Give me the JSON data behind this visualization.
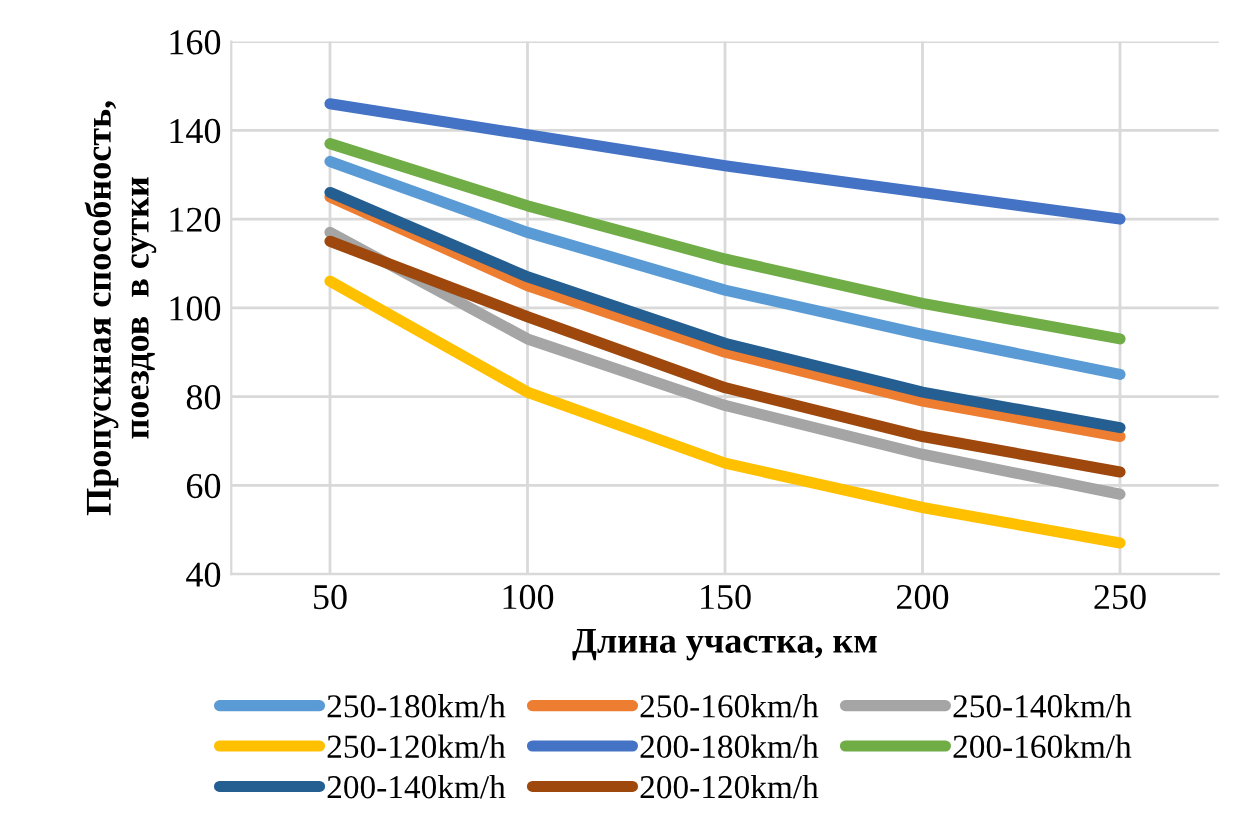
{
  "chart_data": {
    "type": "line",
    "xlabel": "Длина участка, км",
    "ylabel": "Пропускная способность,\nпоездов  в сутки",
    "categories": [
      "50",
      "100",
      "150",
      "200",
      "250"
    ],
    "ylim": [
      40,
      160
    ],
    "yticks": [
      40,
      60,
      80,
      100,
      120,
      140,
      160
    ],
    "grid": true,
    "legend": "bottom",
    "marker": "none",
    "line_style": "solid",
    "series": [
      {
        "name": "250-180km/h",
        "color": "#5b9bd5",
        "values": [
          133,
          117,
          104,
          94,
          85
        ]
      },
      {
        "name": "250-160km/h",
        "color": "#ed7d31",
        "values": [
          125,
          105,
          90,
          79,
          71
        ]
      },
      {
        "name": "250-140km/h",
        "color": "#a5a5a5",
        "values": [
          117,
          93,
          78,
          67,
          58
        ]
      },
      {
        "name": "250-120km/h",
        "color": "#ffc000",
        "values": [
          106,
          81,
          65,
          55,
          47
        ]
      },
      {
        "name": "200-180km/h",
        "color": "#4472c4",
        "values": [
          146,
          139,
          132,
          126,
          120
        ]
      },
      {
        "name": "200-160km/h",
        "color": "#70ad47",
        "values": [
          137,
          123,
          111,
          101,
          93
        ]
      },
      {
        "name": "200-140km/h",
        "color": "#255e91",
        "values": [
          126,
          107,
          92,
          81,
          73
        ]
      },
      {
        "name": "200-120km/h",
        "color": "#9e480e",
        "values": [
          115,
          98,
          82,
          71,
          63
        ]
      }
    ]
  }
}
